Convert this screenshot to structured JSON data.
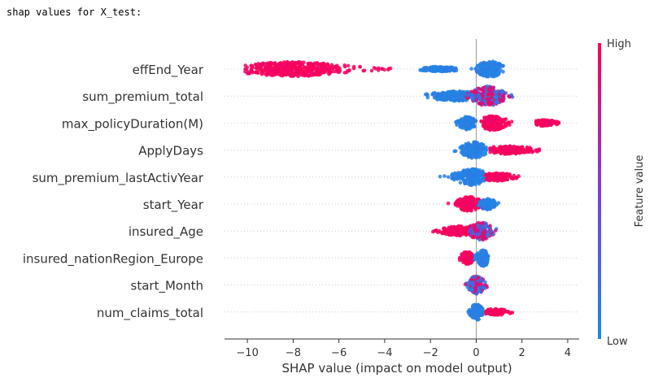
{
  "output_text": "shap values for X_test:",
  "colors": {
    "low": "#1e88e5",
    "high": "#ff0052",
    "axis": "#333333",
    "zero_line": "#999999",
    "grid_dot": "#cccccc"
  },
  "chart_data": {
    "type": "scatter",
    "subtype": "shap-beeswarm",
    "title": "",
    "xlabel": "SHAP value (impact on model output)",
    "ylabel": "",
    "xlim": [
      -11,
      4.5
    ],
    "xticks": [
      -10,
      -8,
      -6,
      -4,
      -2,
      0,
      2,
      4
    ],
    "grid": false,
    "colorbar": {
      "label": "Feature value",
      "high_label": "High",
      "low_label": "Low"
    },
    "features": [
      {
        "name": "effEnd_Year",
        "clusters": [
          {
            "center": -8.0,
            "min": -10.1,
            "max": -3.6,
            "spread": 1.3,
            "height": 9,
            "color": "high"
          },
          {
            "center": -1.6,
            "min": -2.5,
            "max": -0.8,
            "spread": 0.5,
            "height": 3,
            "color": "low"
          },
          {
            "center": 0.6,
            "min": -0.5,
            "max": 1.2,
            "spread": 0.3,
            "height": 10,
            "color": "low"
          }
        ]
      },
      {
        "name": "sum_premium_total",
        "clusters": [
          {
            "center": -0.8,
            "min": -2.3,
            "max": 0.3,
            "spread": 0.7,
            "height": 6,
            "color": "low"
          },
          {
            "center": 0.5,
            "min": -0.6,
            "max": 1.8,
            "spread": 0.4,
            "height": 12,
            "color": "mixed"
          }
        ]
      },
      {
        "name": "max_policyDuration(M)",
        "clusters": [
          {
            "center": -0.4,
            "min": -0.9,
            "max": 0.0,
            "spread": 0.2,
            "height": 8,
            "color": "low"
          },
          {
            "center": 0.7,
            "min": 0.2,
            "max": 1.6,
            "spread": 0.35,
            "height": 9,
            "color": "high"
          },
          {
            "center": 3.0,
            "min": 2.6,
            "max": 3.7,
            "spread": 0.3,
            "height": 4,
            "color": "high"
          }
        ]
      },
      {
        "name": "ApplyDays",
        "clusters": [
          {
            "center": -0.1,
            "min": -1.1,
            "max": 0.5,
            "spread": 0.3,
            "height": 10,
            "color": "low"
          },
          {
            "center": 1.4,
            "min": 0.6,
            "max": 2.8,
            "spread": 0.6,
            "height": 5,
            "color": "high"
          }
        ]
      },
      {
        "name": "sum_premium_lastActivYear",
        "clusters": [
          {
            "center": -0.2,
            "min": -1.6,
            "max": 0.4,
            "spread": 0.4,
            "height": 10,
            "color": "low"
          },
          {
            "center": 0.9,
            "min": 0.4,
            "max": 2.0,
            "spread": 0.4,
            "height": 5,
            "color": "high"
          }
        ]
      },
      {
        "name": "start_Year",
        "clusters": [
          {
            "center": -0.3,
            "min": -1.4,
            "max": 0.4,
            "spread": 0.3,
            "height": 9,
            "color": "high"
          },
          {
            "center": 0.5,
            "min": 0.1,
            "max": 1.0,
            "spread": 0.2,
            "height": 7,
            "color": "low"
          }
        ]
      },
      {
        "name": "insured_Age",
        "clusters": [
          {
            "center": -0.8,
            "min": -1.9,
            "max": 0.0,
            "spread": 0.4,
            "height": 6,
            "color": "high"
          },
          {
            "center": 0.2,
            "min": -0.3,
            "max": 0.9,
            "spread": 0.3,
            "height": 11,
            "color": "mixed"
          }
        ]
      },
      {
        "name": "insured_nationRegion_Europe",
        "clusters": [
          {
            "center": -0.4,
            "min": -0.8,
            "max": -0.1,
            "spread": 0.15,
            "height": 8,
            "color": "high"
          },
          {
            "center": 0.3,
            "min": -0.1,
            "max": 0.6,
            "spread": 0.15,
            "height": 10,
            "color": "low"
          }
        ]
      },
      {
        "name": "start_Month",
        "clusters": [
          {
            "center": 0.0,
            "min": -0.6,
            "max": 0.5,
            "spread": 0.2,
            "height": 11,
            "color": "mixed"
          }
        ]
      },
      {
        "name": "num_claims_total",
        "clusters": [
          {
            "center": 0.0,
            "min": -0.4,
            "max": 0.4,
            "spread": 0.15,
            "height": 10,
            "color": "low"
          },
          {
            "center": 0.9,
            "min": 0.4,
            "max": 1.6,
            "spread": 0.3,
            "height": 4,
            "color": "high"
          }
        ]
      }
    ]
  }
}
